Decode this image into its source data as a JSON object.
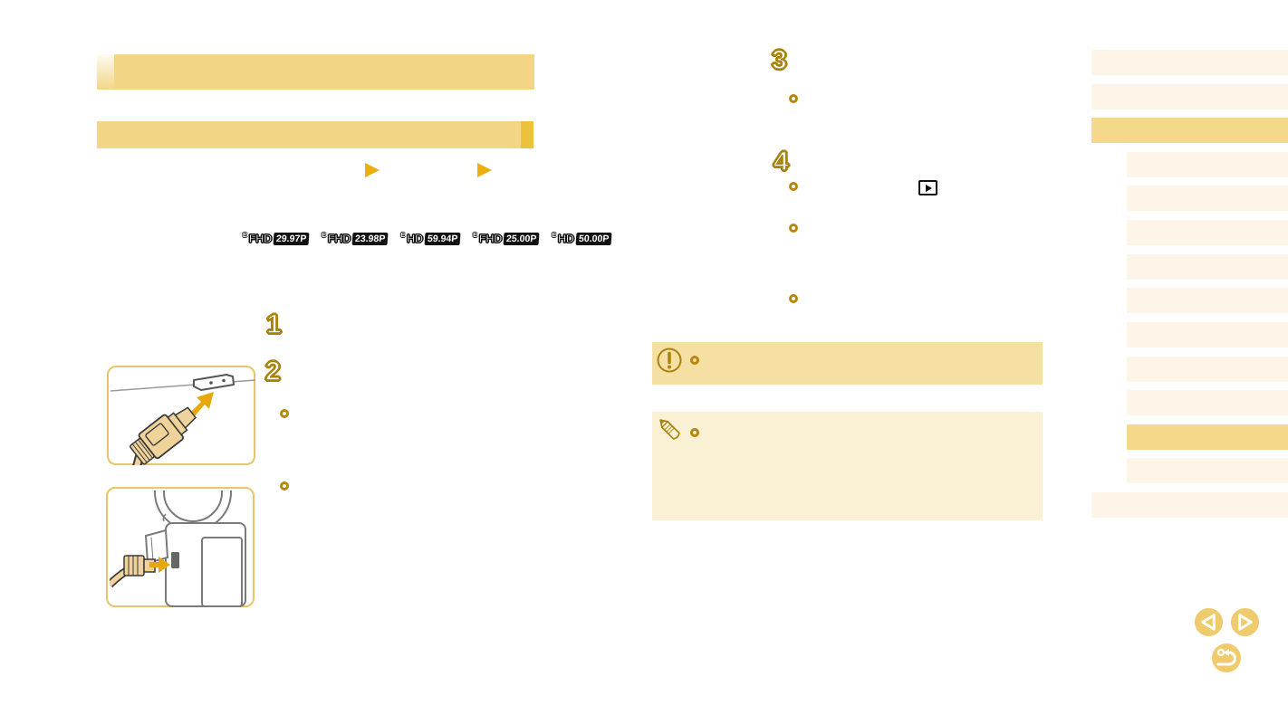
{
  "page": {
    "background": "#ffffff",
    "type": "camera-manual-pdf-page"
  },
  "colors": {
    "accent_tan": "#F3D685",
    "accent_gold_cap": "#ECC23D",
    "sidebar_item_bg": "#FDF6E8",
    "sidebar_active_bg": "#F4D98B",
    "warning_bg": "#F5DFA2",
    "note_bg": "#FAF0D3",
    "outline_gold": "#A9830B",
    "bullet_gold": "#B8860B",
    "triangle_gold": "#EDAE0E",
    "nav_button_fill": "#EFCB6E",
    "figure_border": "#E9C469",
    "badge_black": "#111111"
  },
  "icons": {
    "mode_playback": "play-triangle",
    "warning": "exclamation-circle",
    "note": "pencil",
    "playback_button": "play-in-frame",
    "nav_prev": "chevron-left-circle",
    "nav_next": "chevron-right-circle",
    "nav_return": "return-arrow-circle"
  },
  "left_column": {
    "section_heading": {
      "label": ""
    },
    "sub_heading": {
      "label": ""
    },
    "mode_icons": [
      "play-triangle",
      "play-triangle"
    ],
    "quality_icons": [
      {
        "prefix": "E",
        "res": "FHD",
        "rate": "29.97P"
      },
      {
        "prefix": "E",
        "res": "FHD",
        "rate": "23.98P"
      },
      {
        "prefix": "E",
        "res": "HD",
        "rate": "59.94P"
      },
      {
        "prefix": "E",
        "res": "FHD",
        "rate": "25.00P"
      },
      {
        "prefix": "E",
        "res": "HD",
        "rate": "50.00P"
      }
    ],
    "figures": [
      {
        "name": "hdmi-cable-plug-into-port"
      },
      {
        "name": "camera-with-hdmi-cable-inserted"
      }
    ]
  },
  "steps": [
    "1",
    "2",
    "3",
    "4"
  ],
  "right_column": {
    "playback_button_icon": "play-in-frame",
    "warning_box": {
      "icon": "exclamation-circle",
      "text": ""
    },
    "note_box": {
      "icon": "pencil",
      "text": ""
    }
  },
  "sidebar": {
    "items": [
      {
        "indent": false,
        "active": false
      },
      {
        "indent": false,
        "active": false
      },
      {
        "indent": false,
        "active": true
      },
      {
        "indent": true,
        "active": false
      },
      {
        "indent": true,
        "active": false
      },
      {
        "indent": true,
        "active": false
      },
      {
        "indent": true,
        "active": false
      },
      {
        "indent": true,
        "active": false
      },
      {
        "indent": true,
        "active": false
      },
      {
        "indent": true,
        "active": false
      },
      {
        "indent": true,
        "active": false
      },
      {
        "indent": true,
        "active": true
      },
      {
        "indent": true,
        "active": false
      },
      {
        "indent": false,
        "active": false
      }
    ]
  },
  "nav_buttons": [
    {
      "name": "previous-page"
    },
    {
      "name": "next-page"
    },
    {
      "name": "return"
    }
  ]
}
